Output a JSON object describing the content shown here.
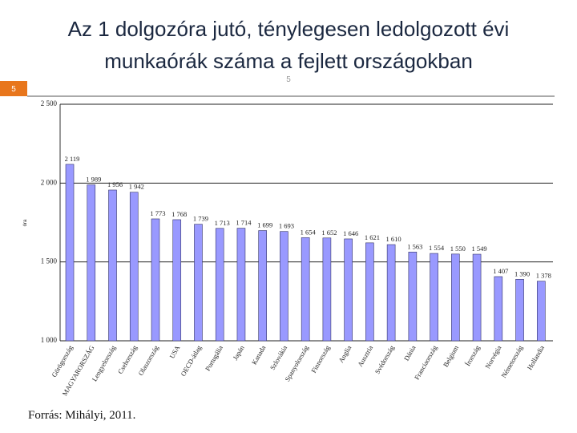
{
  "page_number": "5",
  "source": "Forrás: Mihályi, 2011.",
  "chart_data": {
    "type": "bar",
    "title": [
      "Az 1 dolgozóra jutó, ténylegesen ledolgozott évi",
      "munkaórák száma a fejlett országokban"
    ],
    "y_label": "óra",
    "categories": [
      "Görögország",
      "MAGYARORSZÁG",
      "Lengyelország",
      "Csehország",
      "Olaszország",
      "USA",
      "OECD-átlag",
      "Portugália",
      "Japán",
      "Kanada",
      "Szlovákia",
      "Spanyolország",
      "Finnország",
      "Anglia",
      "Ausztria",
      "Svédország",
      "Dánia",
      "Franciaország",
      "Belgium",
      "Írország",
      "Norvégia",
      "Németország",
      "Hollandia"
    ],
    "values": [
      2119,
      1989,
      1956,
      1942,
      1773,
      1768,
      1739,
      1713,
      1714,
      1699,
      1693,
      1654,
      1652,
      1646,
      1621,
      1610,
      1563,
      1554,
      1550,
      1549,
      1407,
      1390,
      1378
    ],
    "value_labels": [
      "2 119",
      "1 989",
      "1 956",
      "1 942",
      "1 773",
      "1 768",
      "1 739",
      "1 713",
      "1 714",
      "1 699",
      "1 693",
      "1 654",
      "1 652",
      "1 646",
      "1 621",
      "1 610",
      "1 563",
      "1 554",
      "1 550",
      "1 549",
      "1 407",
      "1 390",
      "1 378"
    ],
    "color": "#9999ff",
    "ylim": [
      1000,
      2500
    ],
    "yticks": [
      {
        "value": 1000,
        "label": "1 000"
      },
      {
        "value": 1500,
        "label": "1 500"
      },
      {
        "value": 2000,
        "label": "2 000"
      },
      {
        "value": 2500,
        "label": "2 500"
      }
    ],
    "grid": true
  }
}
